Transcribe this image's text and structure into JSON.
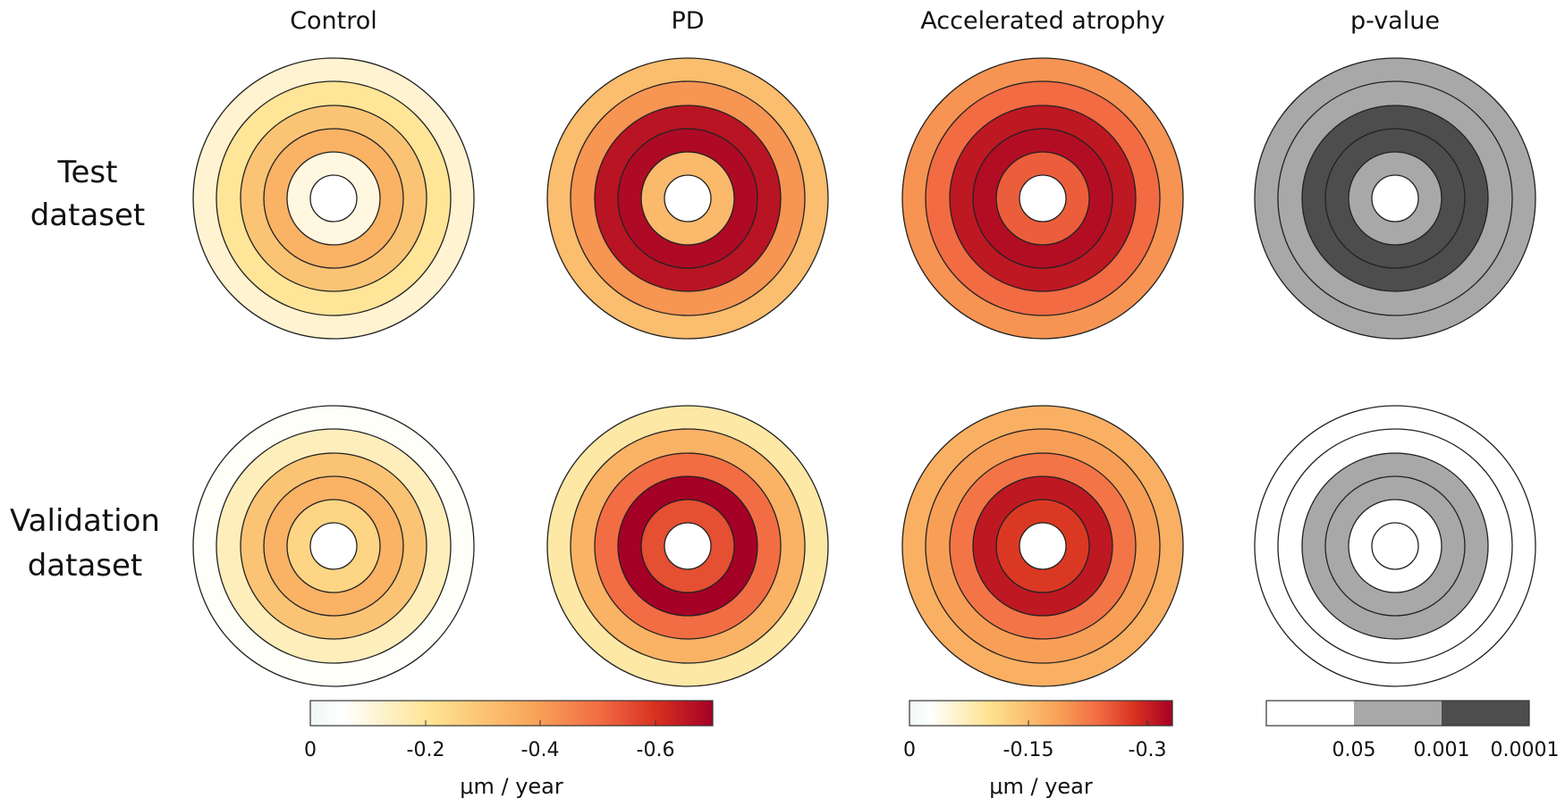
{
  "chart_data": {
    "type": "heatmap",
    "columns": [
      "Control",
      "PD",
      "Accelerated atrophy",
      "p-value"
    ],
    "rows": [
      "Test\ndataset",
      "Validation\ndataset"
    ],
    "row_labels": [
      [
        "Test",
        "dataset"
      ],
      [
        "Validation",
        "dataset"
      ]
    ],
    "ring_order": "inner-to-outer",
    "series": [
      {
        "row": 0,
        "column": "Control",
        "values": [
          -0.1,
          -0.35,
          -0.3,
          -0.2,
          -0.12
        ]
      },
      {
        "row": 0,
        "column": "PD",
        "values": [
          -0.33,
          -0.68,
          -0.66,
          -0.42,
          -0.32
        ]
      },
      {
        "row": 0,
        "column": "Accelerated atrophy",
        "values": [
          -0.25,
          -0.32,
          -0.31,
          -0.24,
          -0.2
        ]
      },
      {
        "row": 0,
        "column": "p-value",
        "values": [
          1,
          2,
          2,
          1,
          1
        ]
      },
      {
        "row": 1,
        "column": "Control",
        "values": [
          -0.25,
          -0.35,
          -0.3,
          -0.15,
          0.0
        ]
      },
      {
        "row": 1,
        "column": "PD",
        "values": [
          -0.55,
          -0.7,
          -0.5,
          -0.35,
          -0.18
        ]
      },
      {
        "row": 1,
        "column": "Accelerated atrophy",
        "values": [
          -0.28,
          -0.31,
          -0.23,
          -0.19,
          -0.17
        ]
      },
      {
        "row": 1,
        "column": "p-value",
        "values": [
          0,
          1,
          1,
          0,
          0
        ]
      }
    ],
    "colorbars": [
      {
        "applies_to": [
          "Control",
          "PD"
        ],
        "range": [
          0,
          -0.7
        ],
        "ticks": [
          0,
          -0.2,
          -0.4,
          -0.6
        ],
        "tick_labels": [
          "0",
          "-0.2",
          "-0.4",
          "-0.6"
        ],
        "label": "μm / year"
      },
      {
        "applies_to": [
          "Accelerated atrophy"
        ],
        "range": [
          0,
          -0.333
        ],
        "ticks": [
          0,
          -0.15,
          -0.3
        ],
        "tick_labels": [
          "0",
          "-0.15",
          "-0.3"
        ],
        "label": "μm / year"
      },
      {
        "applies_to": [
          "p-value"
        ],
        "categorical": true,
        "levels": [
          "> 0.05",
          "< 0.05",
          "< 0.001"
        ],
        "tick_labels": [
          "0.05",
          "0.001",
          "0.0001"
        ],
        "colors": [
          "#ffffff",
          "#a8a8a8",
          "#4d4d4d"
        ]
      }
    ],
    "colormap": [
      "#eef7f7",
      "#ffffff",
      "#fee391",
      "#f9a65a",
      "#f26b43",
      "#d7301f",
      "#a50026"
    ]
  }
}
